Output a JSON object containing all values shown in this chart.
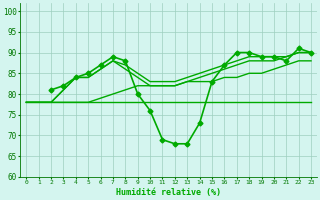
{
  "xlabel": "Humidité relative (%)",
  "background_color": "#d4f5ef",
  "grid_color": "#9ecfbf",
  "line_color": "#00aa00",
  "xlim": [
    -0.5,
    23.5
  ],
  "ylim": [
    60,
    102
  ],
  "yticks": [
    60,
    65,
    70,
    75,
    80,
    85,
    90,
    95,
    100
  ],
  "xticks": [
    0,
    1,
    2,
    3,
    4,
    5,
    6,
    7,
    8,
    9,
    10,
    11,
    12,
    13,
    14,
    15,
    16,
    17,
    18,
    19,
    20,
    21,
    22,
    23
  ],
  "lines": [
    {
      "x": [
        0,
        1,
        2,
        3,
        4,
        5,
        6,
        7,
        8,
        9,
        10,
        11,
        12,
        13,
        14,
        15,
        16,
        17,
        18,
        19,
        20,
        21,
        22,
        23
      ],
      "y": [
        78,
        78,
        78,
        78,
        78,
        78,
        78,
        78,
        78,
        78,
        78,
        78,
        78,
        78,
        78,
        78,
        78,
        78,
        78,
        78,
        78,
        78,
        78,
        78
      ],
      "marker": null,
      "lw": 1.0
    },
    {
      "x": [
        0,
        1,
        2,
        3,
        4,
        5,
        6,
        7,
        8,
        9,
        10,
        11,
        12,
        13,
        14,
        15,
        16,
        17,
        18,
        19,
        20,
        21,
        22,
        23
      ],
      "y": [
        78,
        78,
        78,
        78,
        78,
        78,
        79,
        80,
        81,
        82,
        82,
        82,
        82,
        83,
        83,
        83,
        84,
        84,
        85,
        85,
        86,
        87,
        88,
        88
      ],
      "marker": null,
      "lw": 1.0
    },
    {
      "x": [
        0,
        1,
        2,
        3,
        4,
        5,
        6,
        7,
        8,
        9,
        10,
        11,
        12,
        13,
        14,
        15,
        16,
        17,
        18,
        19,
        20,
        21,
        22,
        23
      ],
      "y": [
        78,
        78,
        78,
        81,
        84,
        84,
        86,
        88,
        86,
        84,
        82,
        82,
        82,
        83,
        84,
        85,
        86,
        87,
        88,
        88,
        88,
        89,
        90,
        90
      ],
      "marker": null,
      "lw": 1.0
    },
    {
      "x": [
        0,
        1,
        2,
        3,
        4,
        5,
        6,
        7,
        8,
        9,
        10,
        11,
        12,
        13,
        14,
        15,
        16,
        17,
        18,
        19,
        20,
        21,
        22,
        23
      ],
      "y": [
        78,
        78,
        78,
        81,
        84,
        84,
        86,
        88,
        87,
        85,
        83,
        83,
        83,
        84,
        85,
        86,
        87,
        88,
        89,
        89,
        89,
        89,
        90,
        90
      ],
      "marker": null,
      "lw": 1.0
    },
    {
      "x": [
        2,
        3,
        4,
        5,
        6,
        7,
        8,
        9,
        10,
        11,
        12,
        13,
        14,
        15,
        16,
        17,
        18,
        19,
        20,
        21,
        22,
        23
      ],
      "y": [
        81,
        82,
        84,
        85,
        87,
        89,
        88,
        80,
        76,
        69,
        68,
        68,
        73,
        83,
        87,
        90,
        90,
        89,
        89,
        88,
        91,
        90
      ],
      "marker": "D",
      "lw": 1.2
    }
  ]
}
